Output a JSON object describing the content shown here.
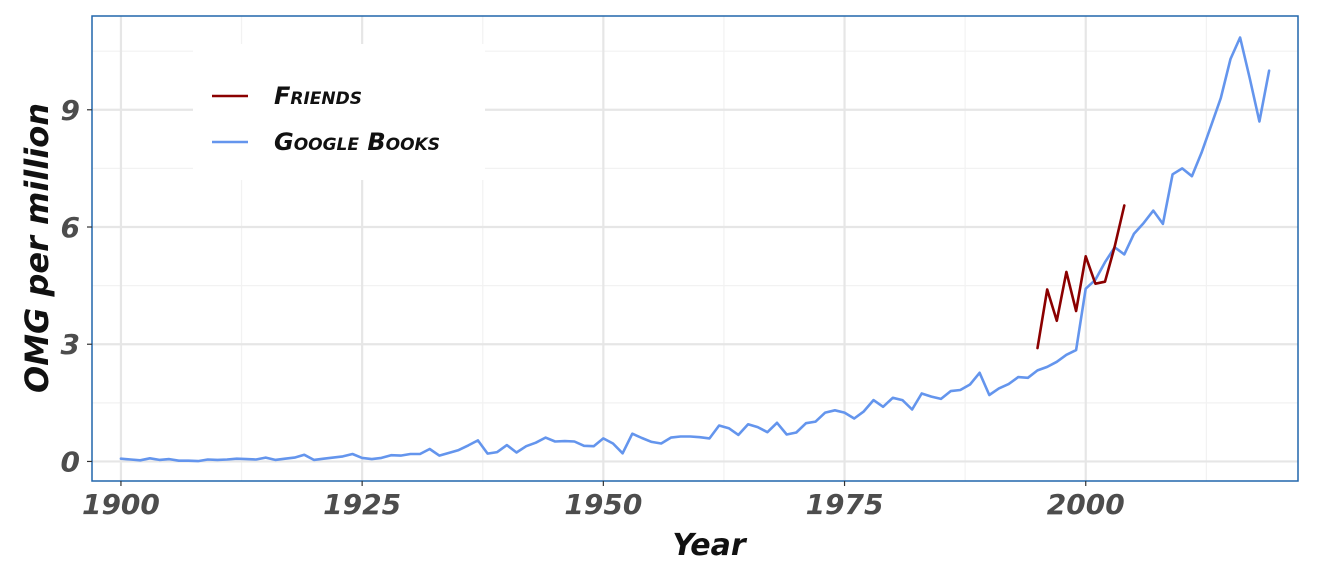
{
  "chart_data": {
    "type": "line",
    "xlabel": "Year",
    "ylabel": "OMG per million",
    "xlim": [
      1897,
      2022
    ],
    "ylim": [
      -0.5,
      11.4
    ],
    "xticks": [
      1900,
      1925,
      1950,
      1975,
      2000
    ],
    "yticks": [
      0,
      3,
      6,
      9
    ],
    "grid": true,
    "legend_position": "top-left",
    "series": [
      {
        "name": "Friends",
        "color": "#8b0000",
        "x": [
          1995,
          1996,
          1997,
          1998,
          1999,
          2000,
          2001,
          2002,
          2003,
          2004
        ],
        "y": [
          2.9,
          4.4,
          3.6,
          4.85,
          3.85,
          5.25,
          4.55,
          4.6,
          5.5,
          6.55
        ]
      },
      {
        "name": "Google Books",
        "color": "#6495ed",
        "x": [
          1900,
          1901,
          1902,
          1903,
          1904,
          1905,
          1906,
          1907,
          1908,
          1909,
          1910,
          1911,
          1912,
          1913,
          1914,
          1915,
          1916,
          1917,
          1918,
          1919,
          1920,
          1921,
          1922,
          1923,
          1924,
          1925,
          1926,
          1927,
          1928,
          1929,
          1930,
          1931,
          1932,
          1933,
          1934,
          1935,
          1936,
          1937,
          1938,
          1939,
          1940,
          1941,
          1942,
          1943,
          1944,
          1945,
          1946,
          1947,
          1948,
          1949,
          1950,
          1951,
          1952,
          1953,
          1954,
          1955,
          1956,
          1957,
          1958,
          1959,
          1960,
          1961,
          1962,
          1963,
          1964,
          1965,
          1966,
          1967,
          1968,
          1969,
          1970,
          1971,
          1972,
          1973,
          1974,
          1975,
          1976,
          1977,
          1978,
          1979,
          1980,
          1981,
          1982,
          1983,
          1984,
          1985,
          1986,
          1987,
          1988,
          1989,
          1990,
          1991,
          1992,
          1993,
          1994,
          1995,
          1996,
          1997,
          1998,
          1999,
          2000,
          2001,
          2002,
          2003,
          2004,
          2005,
          2006,
          2007,
          2008,
          2009,
          2010,
          2011,
          2012,
          2013,
          2014,
          2015,
          2016,
          2017,
          2018,
          2019
        ],
        "y": [
          0.07,
          0.05,
          0.03,
          0.08,
          0.04,
          0.06,
          0.02,
          0.02,
          0.01,
          0.05,
          0.04,
          0.05,
          0.07,
          0.06,
          0.05,
          0.1,
          0.04,
          0.07,
          0.1,
          0.17,
          0.04,
          0.07,
          0.1,
          0.13,
          0.19,
          0.09,
          0.06,
          0.09,
          0.16,
          0.15,
          0.19,
          0.19,
          0.32,
          0.15,
          0.22,
          0.29,
          0.41,
          0.54,
          0.2,
          0.24,
          0.42,
          0.23,
          0.39,
          0.48,
          0.61,
          0.51,
          0.52,
          0.51,
          0.4,
          0.39,
          0.59,
          0.46,
          0.21,
          0.71,
          0.6,
          0.5,
          0.46,
          0.61,
          0.64,
          0.64,
          0.62,
          0.59,
          0.92,
          0.85,
          0.68,
          0.95,
          0.88,
          0.75,
          0.99,
          0.69,
          0.74,
          0.98,
          1.02,
          1.25,
          1.31,
          1.25,
          1.1,
          1.28,
          1.57,
          1.4,
          1.63,
          1.57,
          1.33,
          1.74,
          1.66,
          1.6,
          1.8,
          1.83,
          1.97,
          2.27,
          1.7,
          1.87,
          1.98,
          2.16,
          2.14,
          2.33,
          2.42,
          2.55,
          2.73,
          2.85,
          4.42,
          4.65,
          5.1,
          5.48,
          5.3,
          5.83,
          6.1,
          6.42,
          6.08,
          7.35,
          7.5,
          7.3,
          7.9,
          8.6,
          9.3,
          10.3,
          10.85,
          9.8,
          8.7,
          10.0
        ]
      }
    ]
  }
}
